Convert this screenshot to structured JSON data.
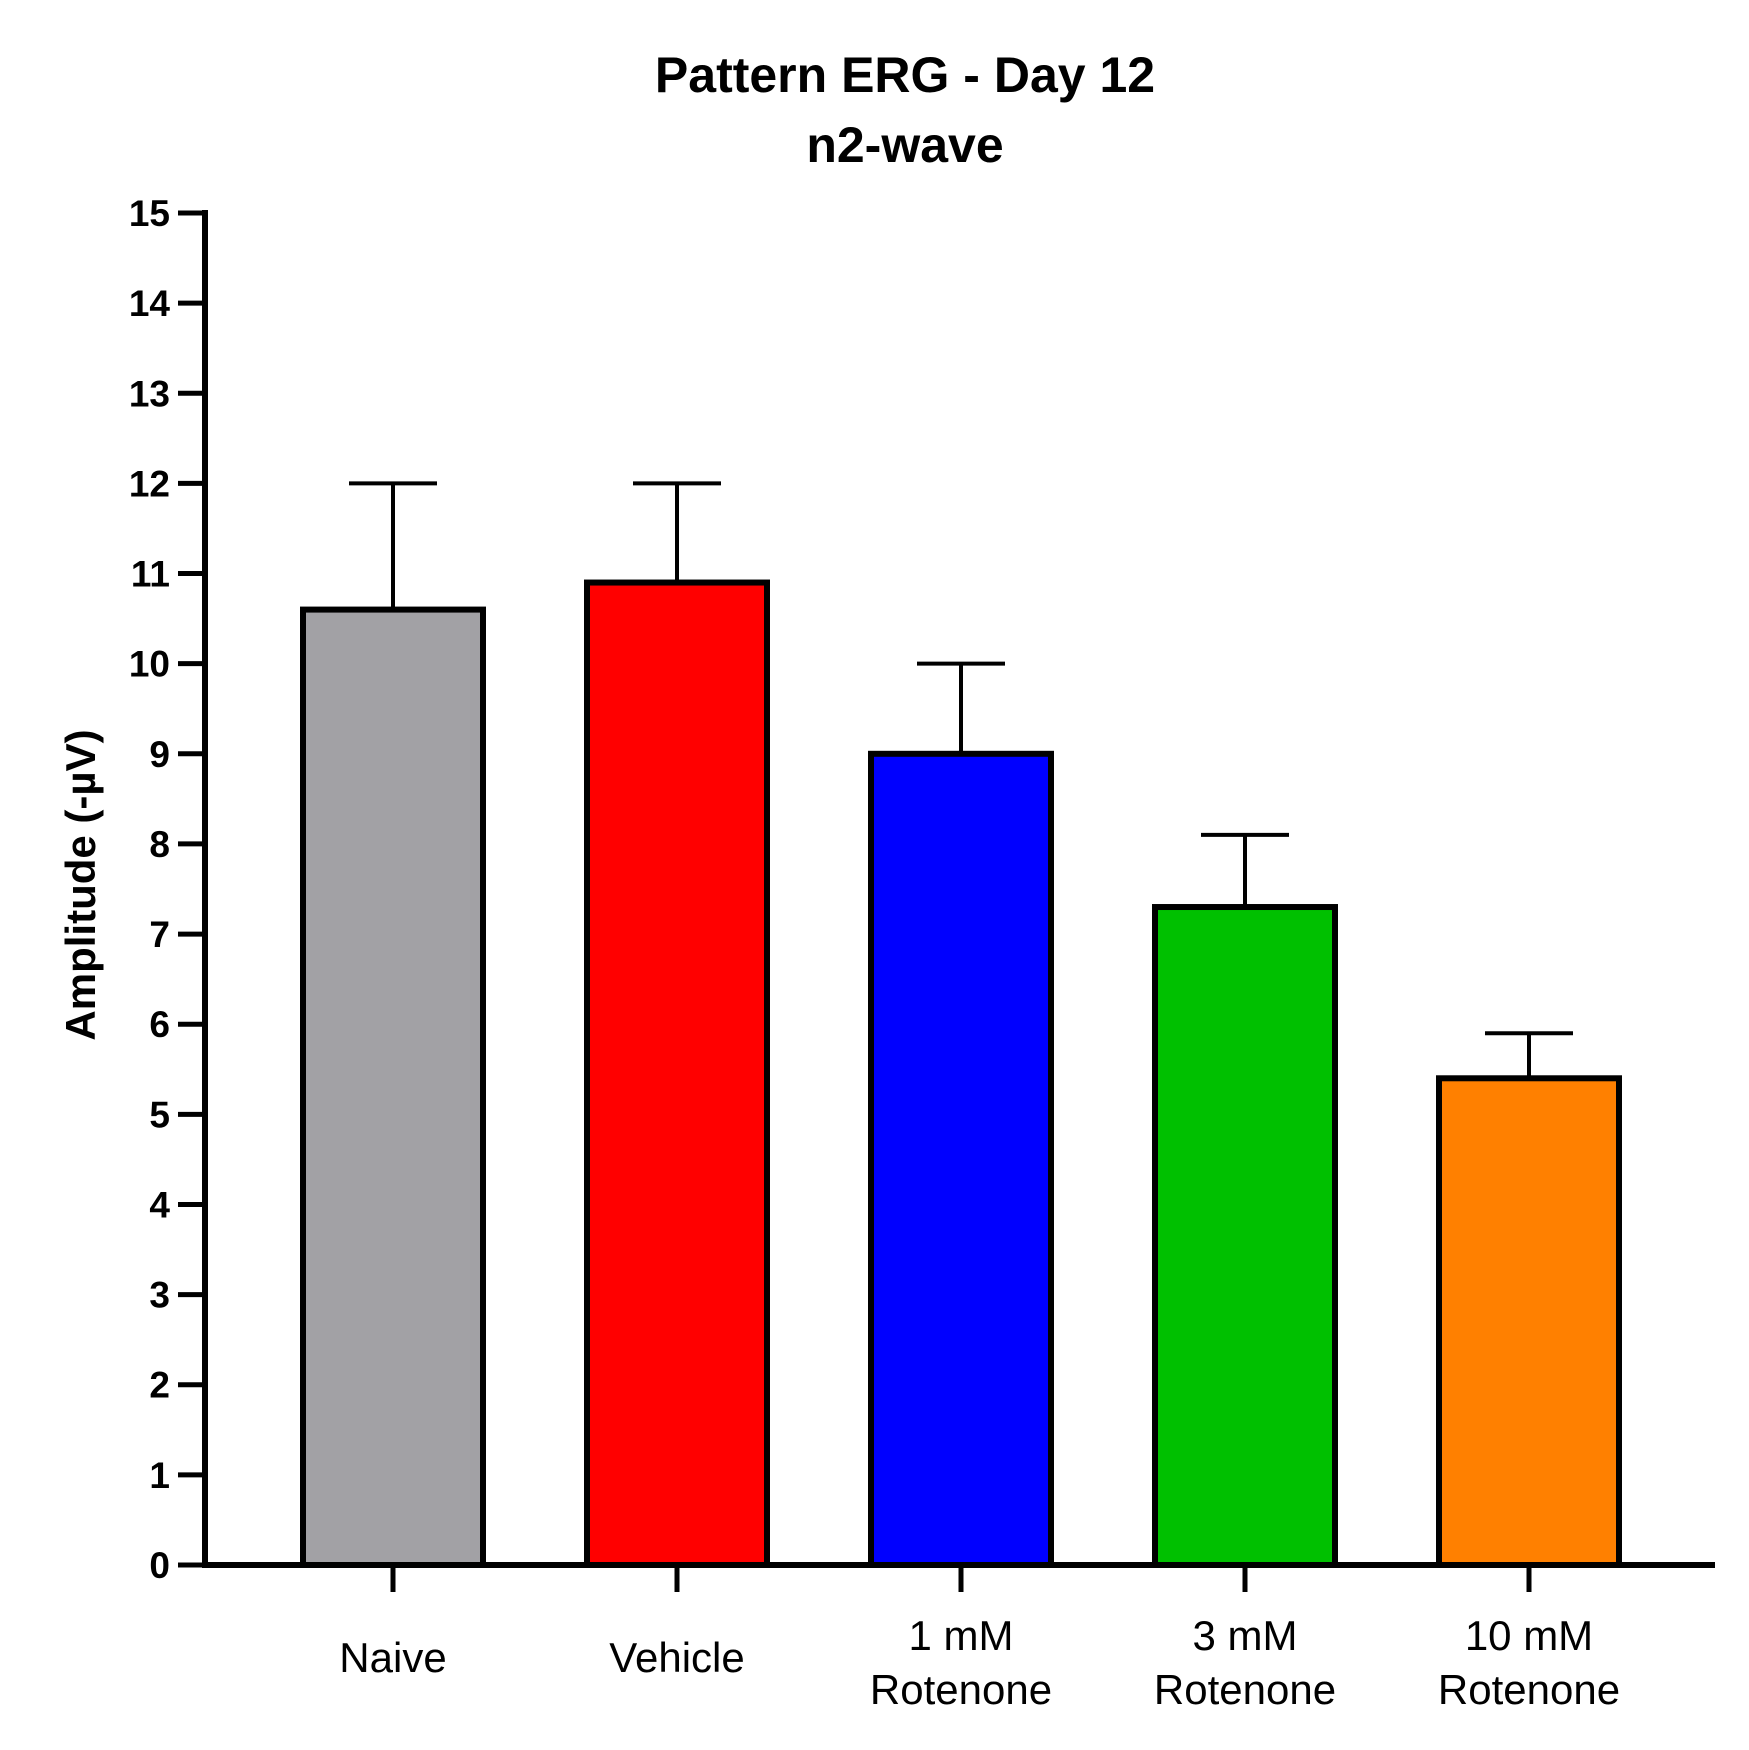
{
  "chart_data": {
    "type": "bar",
    "title": "Pattern ERG - Day 12",
    "subtitle": "n2-wave",
    "ylabel": "Amplitude (-µV)",
    "xlabel": "",
    "ylim": [
      0,
      15
    ],
    "yticks": [
      "0",
      "1",
      "2",
      "3",
      "4",
      "5",
      "6",
      "7",
      "8",
      "9",
      "10",
      "11",
      "12",
      "13",
      "14",
      "15"
    ],
    "grid": false,
    "legend": "none",
    "categories": [
      [
        "Naive"
      ],
      [
        "Vehicle"
      ],
      [
        "1 mM",
        "Rotenone"
      ],
      [
        "3 mM",
        "Rotenone"
      ],
      [
        "10 mM",
        "Rotenone"
      ]
    ],
    "values": [
      10.6,
      10.9,
      9.0,
      7.3,
      5.4
    ],
    "error_upper": [
      12.0,
      12.0,
      10.0,
      8.1,
      5.9
    ],
    "colors": [
      "#a2a1a5",
      "#ff0000",
      "#0000ff",
      "#00c000",
      "#ff8000"
    ]
  }
}
